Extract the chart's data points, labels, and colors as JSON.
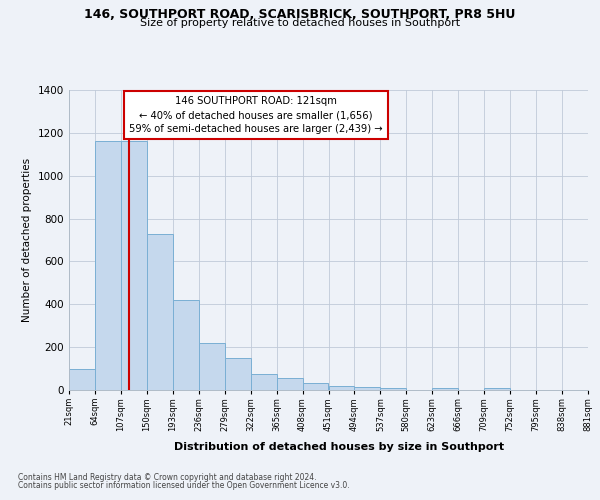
{
  "title": "146, SOUTHPORT ROAD, SCARISBRICK, SOUTHPORT, PR8 5HU",
  "subtitle": "Size of property relative to detached houses in Southport",
  "xlabel": "Distribution of detached houses by size in Southport",
  "ylabel": "Number of detached properties",
  "bar_edges": [
    21,
    64,
    107,
    150,
    193,
    236,
    279,
    322,
    365,
    408,
    451,
    494,
    537,
    580,
    623,
    666,
    709,
    752,
    795,
    838,
    881
  ],
  "bar_heights": [
    100,
    1160,
    1160,
    730,
    420,
    220,
    150,
    75,
    55,
    35,
    20,
    15,
    10,
    0,
    8,
    0,
    10,
    0,
    0,
    0
  ],
  "bar_color": "#c5d8ed",
  "bar_edgecolor": "#7aafd4",
  "vline_x": 121,
  "vline_color": "#cc0000",
  "annotation_title": "146 SOUTHPORT ROAD: 121sqm",
  "annotation_line1": "← 40% of detached houses are smaller (1,656)",
  "annotation_line2": "59% of semi-detached houses are larger (2,439) →",
  "annotation_box_color": "#cc0000",
  "annotation_box_facecolor": "white",
  "tick_labels": [
    "21sqm",
    "64sqm",
    "107sqm",
    "150sqm",
    "193sqm",
    "236sqm",
    "279sqm",
    "322sqm",
    "365sqm",
    "408sqm",
    "451sqm",
    "494sqm",
    "537sqm",
    "580sqm",
    "623sqm",
    "666sqm",
    "709sqm",
    "752sqm",
    "795sqm",
    "838sqm",
    "881sqm"
  ],
  "ylim": [
    0,
    1400
  ],
  "yticks": [
    0,
    200,
    400,
    600,
    800,
    1000,
    1200,
    1400
  ],
  "background_color": "#eef2f8",
  "footnote1": "Contains HM Land Registry data © Crown copyright and database right 2024.",
  "footnote2": "Contains public sector information licensed under the Open Government Licence v3.0."
}
